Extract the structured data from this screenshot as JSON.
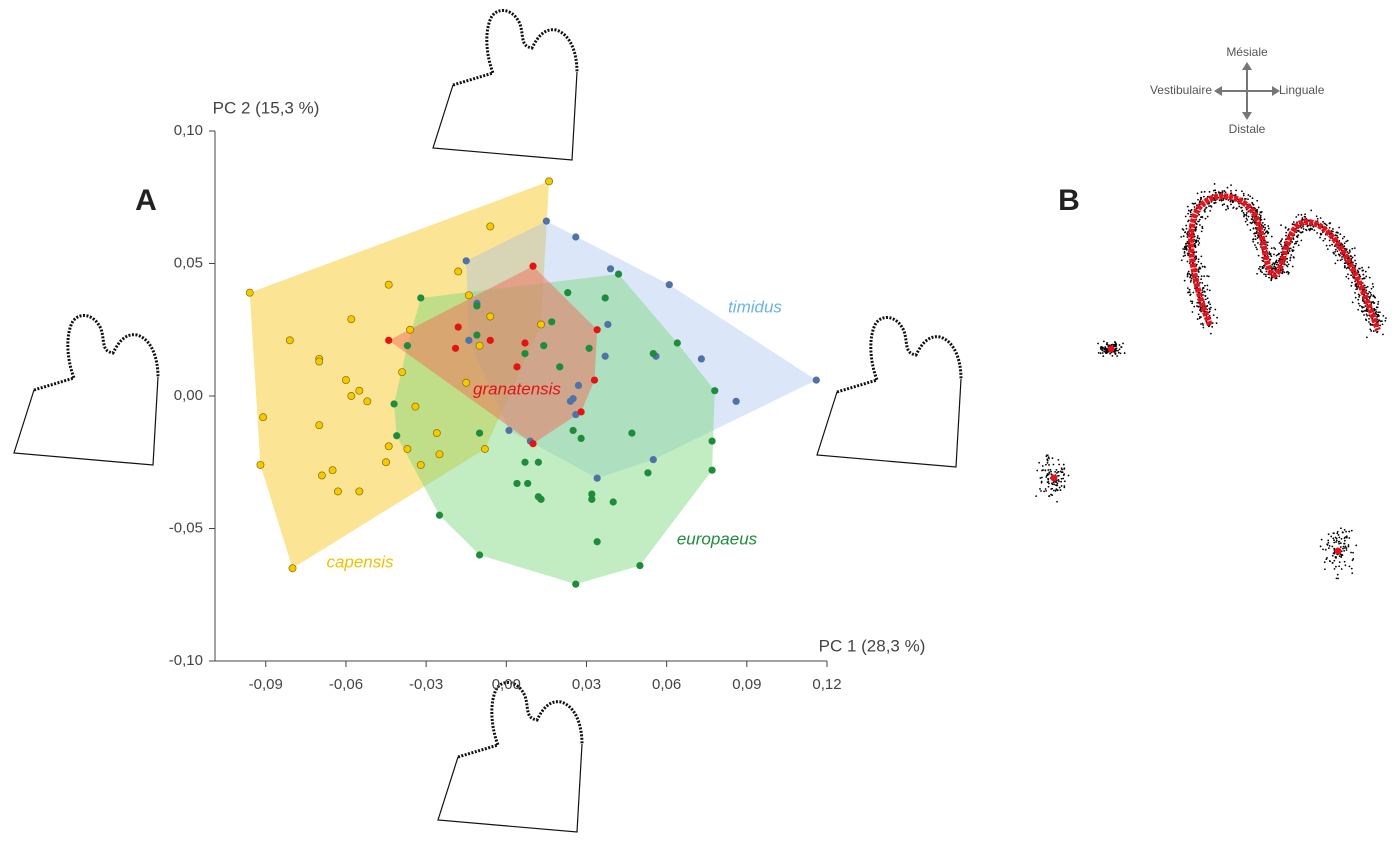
{
  "chart_data": {
    "type": "scatter",
    "x_label": "PC 1 (28,3 %)",
    "y_label": "PC 2 (15,3 %)",
    "xlim": [
      -0.109,
      0.12
    ],
    "ylim": [
      -0.1,
      0.1
    ],
    "xticks": [
      {
        "value": -0.09,
        "label": "-0,09"
      },
      {
        "value": -0.06,
        "label": "-0,06"
      },
      {
        "value": -0.03,
        "label": "-0,03"
      },
      {
        "value": 0,
        "label": "0,00"
      },
      {
        "value": 0.03,
        "label": "0,03"
      },
      {
        "value": 0.06,
        "label": "0,06"
      },
      {
        "value": 0.09,
        "label": "0,09"
      },
      {
        "value": 0.12,
        "label": "0,12"
      }
    ],
    "yticks": [
      {
        "value": -0.1,
        "label": "-0,10"
      },
      {
        "value": -0.05,
        "label": "-0,05"
      },
      {
        "value": 0,
        "label": "0,00"
      },
      {
        "value": 0.05,
        "label": "0,05"
      },
      {
        "value": 0.1,
        "label": "0,10"
      }
    ],
    "series": [
      {
        "name": "capensis",
        "color": "#f5c800",
        "hull": "rgba(248,205,60,0.55)",
        "label_color": "#f0c000",
        "x": [
          0.016,
          -0.006,
          -0.096,
          -0.044,
          -0.058,
          -0.081,
          -0.07,
          -0.07,
          -0.06,
          -0.039,
          -0.055,
          -0.058,
          -0.052,
          -0.034,
          -0.091,
          -0.07,
          -0.026,
          -0.044,
          -0.037,
          -0.045,
          -0.025,
          -0.032,
          -0.008,
          -0.092,
          -0.065,
          -0.069,
          -0.063,
          -0.055,
          -0.08,
          -0.018,
          -0.014,
          -0.006,
          0.013,
          -0.01,
          -0.036,
          -0.015
        ],
        "values": [
          0.081,
          0.064,
          0.039,
          0.042,
          0.029,
          0.021,
          0.014,
          0.013,
          0.006,
          0.009,
          0.002,
          0.0,
          -0.002,
          -0.004,
          -0.008,
          -0.011,
          -0.014,
          -0.019,
          -0.02,
          -0.025,
          -0.022,
          -0.026,
          -0.02,
          -0.026,
          -0.028,
          -0.03,
          -0.036,
          -0.036,
          -0.065,
          0.047,
          0.038,
          0.03,
          0.027,
          0.019,
          0.025,
          0.005
        ]
      },
      {
        "name": "timidus",
        "color": "#4f73a8",
        "hull": "rgba(160,190,240,0.38)",
        "label_color": "#6ab4e0",
        "x": [
          0.015,
          0.026,
          0.039,
          0.061,
          -0.015,
          -0.011,
          0.038,
          0.037,
          0.056,
          0.073,
          0.116,
          0.086,
          0.027,
          0.025,
          0.024,
          0.026,
          0.009,
          0.001,
          0.055,
          0.034,
          -0.014
        ],
        "values": [
          0.066,
          0.06,
          0.048,
          0.042,
          0.051,
          0.035,
          0.027,
          0.015,
          0.015,
          0.014,
          0.006,
          -0.002,
          0.004,
          -0.001,
          -0.002,
          -0.007,
          -0.017,
          -0.013,
          -0.024,
          -0.031,
          0.021
        ]
      },
      {
        "name": "europaeus",
        "color": "#1f8c3b",
        "hull": "rgba(120,215,120,0.45)",
        "label_color": "#1f8c3b",
        "x": [
          -0.032,
          0.042,
          0.023,
          0.037,
          0.017,
          -0.011,
          -0.011,
          0.031,
          0.064,
          -0.037,
          0.007,
          0.014,
          0.02,
          0.055,
          -0.042,
          0.078,
          -0.01,
          -0.041,
          0.025,
          0.028,
          0.047,
          0.077,
          0.007,
          0.012,
          0.077,
          0.053,
          0.004,
          0.008,
          0.012,
          0.013,
          0.032,
          0.032,
          0.04,
          -0.025,
          0.034,
          -0.01,
          0.05,
          0.026
        ],
        "values": [
          0.037,
          0.046,
          0.039,
          0.037,
          0.028,
          0.034,
          0.023,
          0.018,
          0.02,
          0.019,
          0.016,
          0.019,
          0.011,
          0.016,
          -0.003,
          0.002,
          -0.014,
          -0.015,
          -0.013,
          -0.016,
          -0.014,
          -0.017,
          -0.025,
          -0.025,
          -0.028,
          -0.029,
          -0.033,
          -0.033,
          -0.038,
          -0.039,
          -0.037,
          -0.039,
          -0.04,
          -0.045,
          -0.055,
          -0.06,
          -0.064,
          -0.071
        ]
      },
      {
        "name": "granatensis",
        "color": "#e01515",
        "hull": "rgba(240,110,90,0.5)",
        "label_color": "#e01515",
        "x": [
          0.01,
          -0.044,
          -0.018,
          -0.006,
          0.034,
          0.007,
          -0.019,
          0.004,
          0.033,
          0.028,
          0.01
        ],
        "values": [
          0.049,
          0.021,
          0.026,
          0.021,
          0.025,
          0.02,
          0.018,
          0.011,
          0.006,
          -0.006,
          -0.018
        ]
      }
    ]
  },
  "panels": [
    "A",
    "B"
  ],
  "orientation": {
    "top": "Mésiale",
    "left": "Vestibulaire",
    "right": "Linguale",
    "bottom": "Distale"
  }
}
